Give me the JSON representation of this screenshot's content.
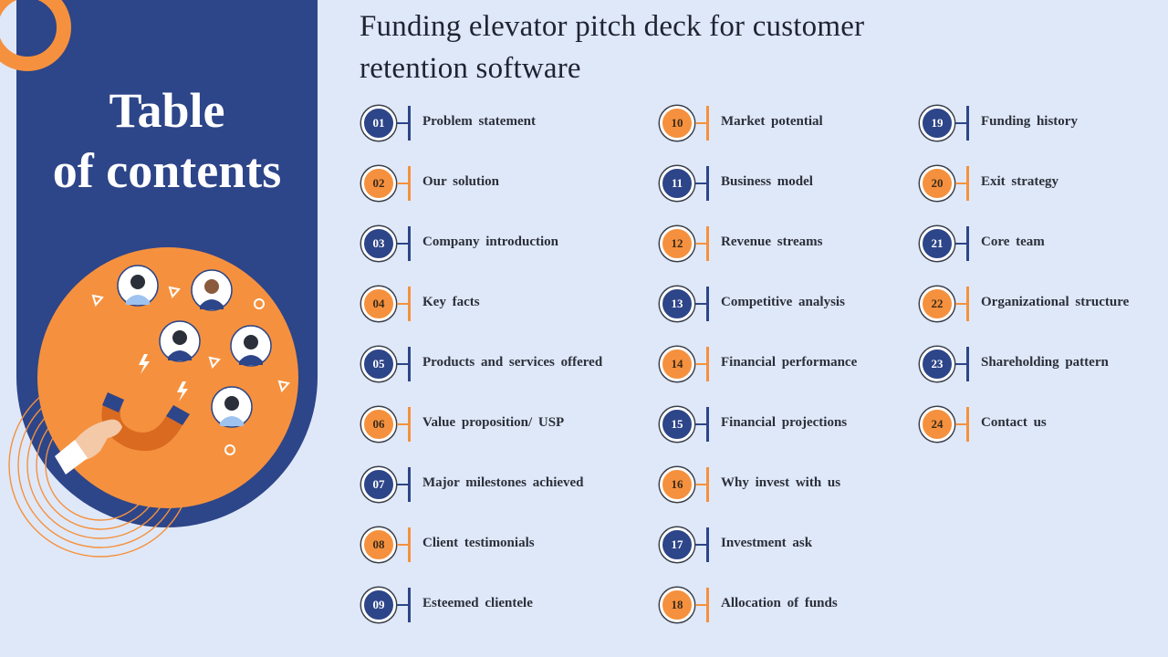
{
  "title_panel": {
    "line1": "Table",
    "line2": "of contents"
  },
  "deck_title": {
    "line1": "Funding elevator pitch deck for customer",
    "line2": "retention software"
  },
  "colors": {
    "navy": "#2d4589",
    "orange": "#f5913e",
    "background": "#dfe8f8"
  },
  "illustration": {
    "icons": [
      "magnet-icon",
      "hand-icon",
      "person-icon",
      "lightning-icon"
    ]
  },
  "items": [
    {
      "num": "01",
      "label": "Problem  statement"
    },
    {
      "num": "02",
      "label": "Our solution"
    },
    {
      "num": "03",
      "label": "Company  introduction"
    },
    {
      "num": "04",
      "label": "Key facts"
    },
    {
      "num": "05",
      "label": "Products  and services offered"
    },
    {
      "num": "06",
      "label": "Value proposition/  USP"
    },
    {
      "num": "07",
      "label": "Major milestones achieved"
    },
    {
      "num": "08",
      "label": "Client testimonials"
    },
    {
      "num": "09",
      "label": "Esteemed clientele"
    },
    {
      "num": "10",
      "label": "Market potential"
    },
    {
      "num": "11",
      "label": "Business model"
    },
    {
      "num": "12",
      "label": "Revenue streams"
    },
    {
      "num": "13",
      "label": "Competitive  analysis"
    },
    {
      "num": "14",
      "label": "Financial  performance"
    },
    {
      "num": "15",
      "label": "Financial  projections"
    },
    {
      "num": "16",
      "label": "Why invest with  us"
    },
    {
      "num": "17",
      "label": "Investment ask"
    },
    {
      "num": "18",
      "label": "Allocation  of funds"
    },
    {
      "num": "19",
      "label": "Funding  history"
    },
    {
      "num": "20",
      "label": "Exit strategy"
    },
    {
      "num": "21",
      "label": "Core team"
    },
    {
      "num": "22",
      "label": "Organizational  structure"
    },
    {
      "num": "23",
      "label": "Shareholding  pattern"
    },
    {
      "num": "24",
      "label": "Contact us"
    }
  ]
}
